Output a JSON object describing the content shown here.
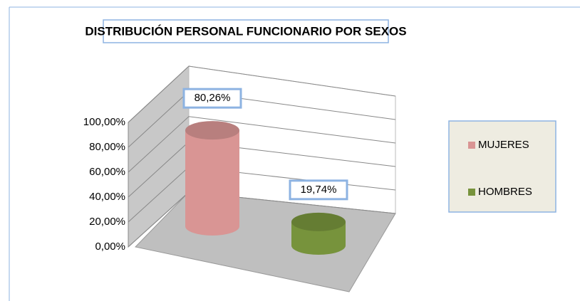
{
  "chart_data": {
    "type": "cylinder",
    "title": "DISTRIBUCIÓN PERSONAL FUNCIONARIO POR SEXOS",
    "categories": [
      "MUJERES",
      "HOMBRES"
    ],
    "values": [
      80.26,
      19.74
    ],
    "value_labels": [
      "80,26%",
      "19,74%"
    ],
    "colors": [
      "#d99594",
      "#77933c"
    ],
    "ylim": [
      0,
      100
    ],
    "yticks": [
      {
        "value": 0,
        "label": "0,00%"
      },
      {
        "value": 20,
        "label": "20,00%"
      },
      {
        "value": 40,
        "label": "40,00%"
      },
      {
        "value": 60,
        "label": "60,00%"
      },
      {
        "value": 80,
        "label": "80,00%"
      },
      {
        "value": 100,
        "label": "100,00%"
      }
    ],
    "grid": true,
    "legend": "right"
  }
}
